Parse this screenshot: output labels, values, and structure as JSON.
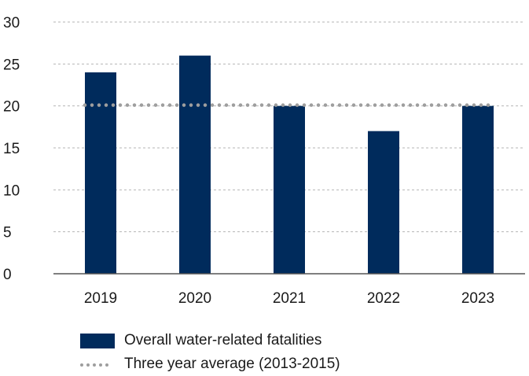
{
  "chart_data": {
    "type": "bar",
    "categories": [
      "2019",
      "2020",
      "2021",
      "2022",
      "2023"
    ],
    "series": [
      {
        "name": "Overall water-related fatalities",
        "values": [
          24,
          26,
          20,
          17,
          20
        ],
        "color": "#002b5c"
      },
      {
        "name": "Three year average (2013-2015)",
        "values": [
          20.1,
          20.1,
          20.1,
          20.1,
          20.1
        ],
        "color": "#9e9e9e",
        "style": "dotted-line"
      }
    ],
    "ylim": [
      0,
      30
    ],
    "yticks": [
      "0",
      "5",
      "10",
      "15",
      "20",
      "25",
      "30"
    ],
    "grid": true,
    "legend_position": "bottom-left"
  }
}
